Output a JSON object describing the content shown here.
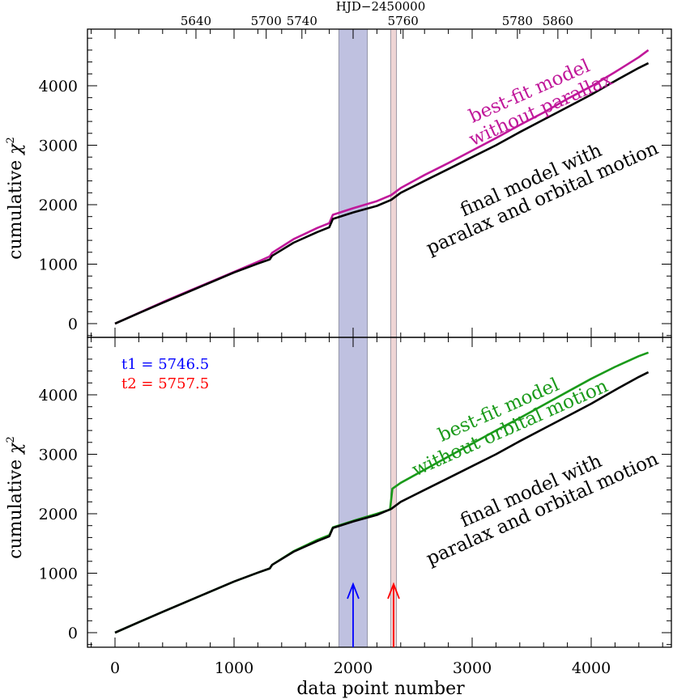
{
  "chart_data": {
    "type": "line",
    "xlabel": "data point number",
    "ylabel_text": "cumulative",
    "ylabel_symbol": "χ",
    "ylabel_exponent": "2",
    "x_range": [
      -200,
      4600
    ],
    "x_ticks": [
      "0",
      "1000",
      "2000",
      "3000",
      "4000"
    ],
    "y_range": [
      -100,
      4900
    ],
    "y_ticks": [
      "0",
      "1000",
      "2000",
      "3000",
      "4000"
    ],
    "top_axis": {
      "title": "HJD−2450000",
      "tick_labels": [
        {
          "label": "5640",
          "x": 680
        },
        {
          "label": "5700",
          "x": 1270
        },
        {
          "label": "5740",
          "x": 1570
        },
        {
          "label": "5760",
          "x": 2420
        },
        {
          "label": "5780",
          "x": 3380
        },
        {
          "label": "5860",
          "x": 3720
        }
      ]
    },
    "shaded_regions": [
      {
        "x_start": 1880,
        "x_end": 2120,
        "color": "#a9acd6"
      },
      {
        "x_start": 2315,
        "x_end": 2365,
        "color": "#e8c5c5"
      }
    ],
    "panels": [
      {
        "series": [
          {
            "label_line1": "best-fit model",
            "label_line2": "without parallax",
            "color": "#c0189a",
            "x": [
              0,
              200,
              400,
              600,
              800,
              1000,
              1200,
              1300,
              1320,
              1500,
              1700,
              1800,
              1830,
              2000,
              2200,
              2320,
              2400,
              2600,
              2800,
              3000,
              3200,
              3400,
              3600,
              3800,
              4000,
              4200,
              4400,
              4480
            ],
            "y": [
              0,
              180,
              360,
              530,
              700,
              870,
              1040,
              1130,
              1190,
              1420,
              1610,
              1690,
              1830,
              1940,
              2060,
              2160,
              2280,
              2500,
              2700,
              2910,
              3120,
              3340,
              3550,
              3780,
              3990,
              4230,
              4480,
              4600
            ]
          },
          {
            "label_line1": "final model with",
            "label_line2": "paralax and orbital motion",
            "color": "#000000",
            "x": [
              0,
              200,
              400,
              600,
              800,
              1000,
              1200,
              1300,
              1320,
              1500,
              1700,
              1800,
              1830,
              2000,
              2200,
              2320,
              2400,
              2600,
              2800,
              3000,
              3200,
              3400,
              3600,
              3800,
              4000,
              4200,
              4400,
              4480
            ],
            "y": [
              0,
              175,
              350,
              520,
              690,
              860,
              1010,
              1080,
              1140,
              1360,
              1540,
              1620,
              1760,
              1870,
              1980,
              2080,
              2200,
              2400,
              2600,
              2800,
              3000,
              3220,
              3430,
              3640,
              3850,
              4080,
              4300,
              4380
            ]
          }
        ]
      },
      {
        "parameters": [
          {
            "text": "t1 = 5746.5",
            "color": "#0000ff"
          },
          {
            "text": "t2 = 5757.5",
            "color": "#ff0000"
          }
        ],
        "arrows": [
          {
            "x": 2000,
            "color": "#0000ff"
          },
          {
            "x": 2340,
            "color": "#ff0000"
          }
        ],
        "series": [
          {
            "label_line1": "best-fit model",
            "label_line2": "without orbital motion",
            "color": "#1a9a1a",
            "x": [
              0,
              200,
              400,
              600,
              800,
              1000,
              1200,
              1300,
              1320,
              1500,
              1700,
              1800,
              1830,
              2000,
              2200,
              2310,
              2330,
              2400,
              2600,
              2800,
              3000,
              3200,
              3400,
              3600,
              3800,
              4000,
              4200,
              4400,
              4480
            ],
            "y": [
              0,
              175,
              350,
              520,
              690,
              860,
              1010,
              1080,
              1140,
              1370,
              1560,
              1640,
              1770,
              1880,
              2000,
              2070,
              2420,
              2520,
              2740,
              2960,
              3180,
              3400,
              3610,
              3830,
              4050,
              4270,
              4470,
              4650,
              4710
            ]
          },
          {
            "label_line1": "final model with",
            "label_line2": "paralax and orbital motion",
            "color": "#000000",
            "x": [
              0,
              200,
              400,
              600,
              800,
              1000,
              1200,
              1300,
              1320,
              1500,
              1700,
              1800,
              1830,
              2000,
              2200,
              2320,
              2400,
              2600,
              2800,
              3000,
              3200,
              3400,
              3600,
              3800,
              4000,
              4200,
              4400,
              4480
            ],
            "y": [
              0,
              175,
              350,
              520,
              690,
              860,
              1010,
              1080,
              1140,
              1360,
              1540,
              1620,
              1760,
              1870,
              1980,
              2080,
              2200,
              2400,
              2600,
              2800,
              3000,
              3220,
              3430,
              3640,
              3850,
              4080,
              4300,
              4380
            ]
          }
        ]
      }
    ]
  }
}
